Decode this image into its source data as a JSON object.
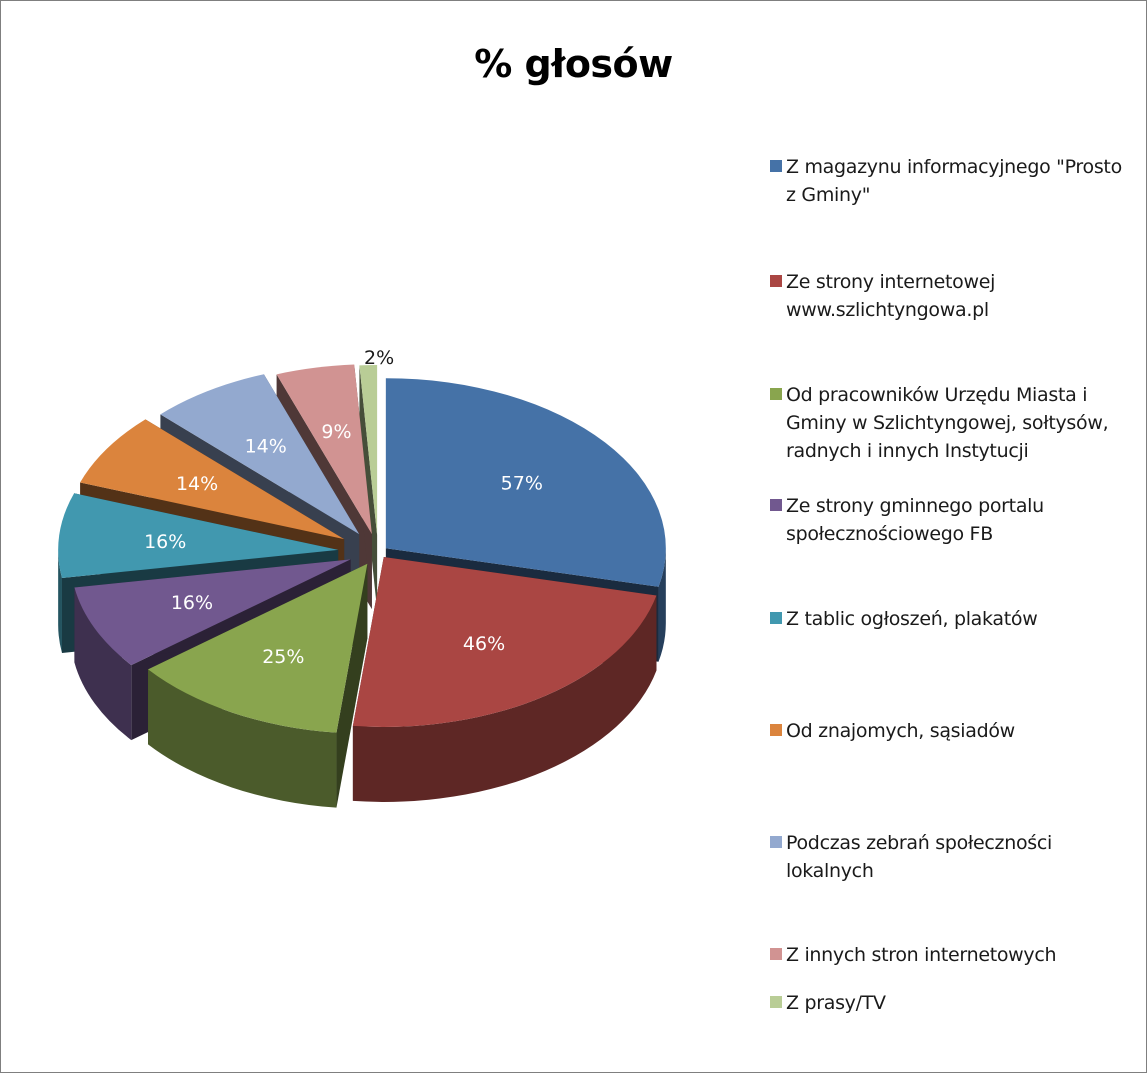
{
  "chart_data": {
    "type": "pie",
    "title": "% głosów",
    "categories": [
      "Z magazynu informacyjnego \"Prosto z Gminy\"",
      "Ze strony internetowej www.szlichtyngowa.pl",
      "Od pracowników Urzędu Miasta i Gminy w Szlichtyngowej, sołtysów, radnych i innych Instytucji",
      "Ze strony gminnego portalu społecznościowego FB",
      "Z tablic ogłoszeń, plakatów",
      "Od znajomych, sąsiadów",
      "Podczas zebrań społeczności lokalnych",
      "Z innych stron internetowych",
      "Z prasy/TV"
    ],
    "values": [
      57,
      46,
      25,
      16,
      16,
      14,
      14,
      9,
      2
    ],
    "data_labels": [
      "57%",
      "46%",
      "25%",
      "16%",
      "16%",
      "14%",
      "14%",
      "9%",
      "2%"
    ],
    "colors": [
      "#4572a7",
      "#aa4643",
      "#89a54e",
      "#71588f",
      "#4198af",
      "#db843d",
      "#93a9cf",
      "#d19392",
      "#b9cd96"
    ],
    "legend_position": "right",
    "style": "3d exploded pie"
  },
  "legend_lines": [
    [
      "Z magazynu informacyjnego \"Prosto",
      "z Gminy\""
    ],
    [
      "Ze strony internetowej",
      "www.szlichtyngowa.pl"
    ],
    [
      "Od pracowników Urzędu Miasta i",
      "Gminy w Szlichtyngowej, sołtysów,",
      "radnych i innych Instytucji"
    ],
    [
      "Ze strony gminnego portalu",
      "społecznościowego FB"
    ],
    [
      "Z tablic ogłoszeń, plakatów"
    ],
    [
      "Od znajomych, sąsiadów"
    ],
    [
      "Podczas zebrań społeczności",
      "lokalnych"
    ],
    [
      "Z innych stron internetowych"
    ],
    [
      "Z prasy/TV"
    ]
  ]
}
